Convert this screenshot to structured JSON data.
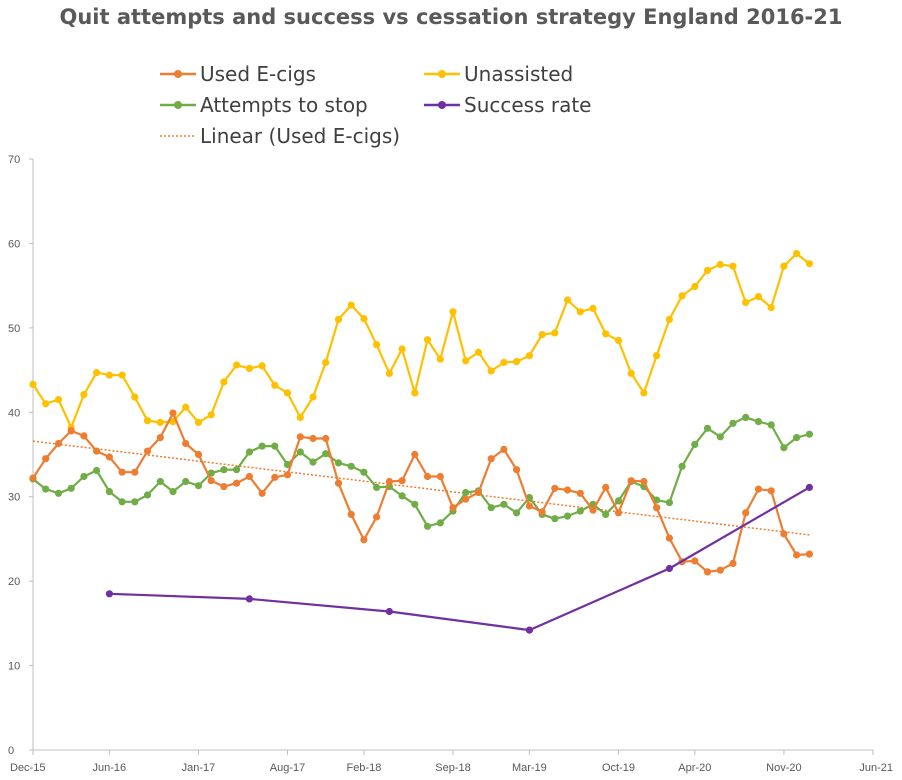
{
  "chart_data": {
    "type": "line",
    "title": "Quit attempts and success vs cessation strategy England 2016-21",
    "xlabel": "",
    "ylabel": "",
    "ylim": [
      0,
      70
    ],
    "yticks": [
      0,
      10,
      20,
      30,
      40,
      50,
      60,
      70
    ],
    "x_tick_labels": [
      "Dec-15",
      "Jun-16",
      "Jan-17",
      "Aug-17",
      "Feb-18",
      "Sep-18",
      "Mar-19",
      "Oct-19",
      "Apr-20",
      "Nov-20",
      "Jun-21"
    ],
    "x_tick_months": [
      0,
      6,
      13,
      20,
      26,
      33,
      39,
      46,
      52,
      59,
      66
    ],
    "legend": [
      {
        "key": "used_ecigs",
        "label": "Used E-cigs"
      },
      {
        "key": "unassisted",
        "label": "Unassisted"
      },
      {
        "key": "attempts",
        "label": "Attempts to stop"
      },
      {
        "key": "success",
        "label": "Success rate"
      },
      {
        "key": "trend",
        "label": "Linear (Used E-cigs)"
      }
    ],
    "series": [
      {
        "key": "used_ecigs",
        "name": "Used E-cigs",
        "color": "#ED7D31",
        "x": [
          0,
          1,
          2,
          3,
          4,
          5,
          6,
          7,
          8,
          9,
          10,
          11,
          12,
          13,
          14,
          15,
          16,
          17,
          18,
          19,
          20,
          21,
          22,
          23,
          24,
          25,
          26,
          27,
          28,
          29,
          30,
          31,
          32,
          33,
          34,
          35,
          36,
          37,
          38,
          39,
          40,
          41,
          42,
          43,
          44,
          45,
          46,
          47,
          48,
          49,
          50,
          51,
          52,
          53,
          54,
          55,
          56,
          57,
          58,
          59,
          60,
          61
        ],
        "values": [
          32.2,
          34.5,
          36.3,
          37.8,
          37.2,
          35.4,
          34.7,
          32.9,
          32.9,
          35.4,
          37.0,
          39.9,
          36.3,
          35.0,
          31.9,
          31.2,
          31.6,
          32.4,
          30.4,
          32.3,
          32.6,
          37.1,
          36.9,
          36.9,
          31.6,
          27.9,
          24.9,
          27.6,
          31.8,
          31.9,
          35.0,
          32.4,
          32.4,
          28.7,
          29.7,
          30.5,
          34.5,
          35.6,
          33.2,
          28.9,
          28.2,
          31.0,
          30.8,
          30.4,
          28.4,
          31.1,
          28.1,
          31.9,
          31.8,
          28.7,
          25.1,
          22.3,
          22.4,
          21.1,
          21.3,
          22.1,
          28.1,
          30.9,
          30.7,
          25.6,
          23.1,
          23.2
        ]
      },
      {
        "key": "unassisted",
        "name": "Unassisted",
        "color": "#FFC000",
        "x": [
          0,
          1,
          2,
          3,
          4,
          5,
          6,
          7,
          8,
          9,
          10,
          11,
          12,
          13,
          14,
          15,
          16,
          17,
          18,
          19,
          20,
          21,
          22,
          23,
          24,
          25,
          26,
          27,
          28,
          29,
          30,
          31,
          32,
          33,
          34,
          35,
          36,
          37,
          38,
          39,
          40,
          41,
          42,
          43,
          44,
          45,
          46,
          47,
          48,
          49,
          50,
          51,
          52,
          53,
          54,
          55,
          56,
          57,
          58,
          59,
          60,
          61
        ],
        "values": [
          43.3,
          41.0,
          41.5,
          38.2,
          42.1,
          44.7,
          44.4,
          44.4,
          41.8,
          39.0,
          38.8,
          38.9,
          40.6,
          38.8,
          39.7,
          43.6,
          45.6,
          45.2,
          45.5,
          43.2,
          42.3,
          39.4,
          41.8,
          45.9,
          51.0,
          52.7,
          51.1,
          48.0,
          44.6,
          47.5,
          42.3,
          48.6,
          46.3,
          51.9,
          46.1,
          47.1,
          44.9,
          45.9,
          46.0,
          46.7,
          49.2,
          49.4,
          53.3,
          51.9,
          52.3,
          49.3,
          48.5,
          44.6,
          42.3,
          46.7,
          51.0,
          53.8,
          54.9,
          56.8,
          57.5,
          57.3,
          53.0,
          53.7,
          52.4,
          57.3,
          58.8,
          57.6
        ]
      },
      {
        "key": "attempts",
        "name": "Attempts to stop",
        "color": "#70AD47",
        "x": [
          0,
          1,
          2,
          3,
          4,
          5,
          6,
          7,
          8,
          9,
          10,
          11,
          12,
          13,
          14,
          15,
          16,
          17,
          18,
          19,
          20,
          21,
          22,
          23,
          24,
          25,
          26,
          27,
          28,
          29,
          30,
          31,
          32,
          33,
          34,
          35,
          36,
          37,
          38,
          39,
          40,
          41,
          42,
          43,
          44,
          45,
          46,
          47,
          48,
          49,
          50,
          51,
          52,
          53,
          54,
          55,
          56,
          57,
          58,
          59,
          60,
          61
        ],
        "values": [
          32.1,
          30.9,
          30.4,
          31.0,
          32.4,
          33.1,
          30.6,
          29.4,
          29.4,
          30.2,
          31.8,
          30.6,
          31.8,
          31.3,
          32.8,
          33.2,
          33.2,
          35.3,
          36.0,
          36.0,
          33.8,
          35.3,
          34.1,
          35.1,
          34.0,
          33.6,
          32.9,
          31.1,
          31.2,
          30.1,
          29.1,
          26.5,
          26.9,
          28.3,
          30.5,
          30.7,
          28.7,
          29.1,
          28.1,
          29.9,
          27.9,
          27.4,
          27.7,
          28.3,
          29.1,
          27.9,
          29.5,
          31.8,
          31.2,
          29.6,
          29.3,
          33.6,
          36.2,
          38.1,
          37.1,
          38.7,
          39.4,
          38.9,
          38.5,
          35.8,
          37.0,
          37.4
        ]
      },
      {
        "key": "success",
        "name": "Success rate",
        "color": "#7030A0",
        "x": [
          6,
          17,
          28,
          39,
          50,
          61
        ],
        "values": [
          18.5,
          17.9,
          16.4,
          14.2,
          21.5,
          31.1
        ]
      }
    ],
    "trendline": {
      "key": "trend",
      "name": "Linear (Used E-cigs)",
      "color": "#ED7D31",
      "of": "used_ecigs"
    }
  }
}
